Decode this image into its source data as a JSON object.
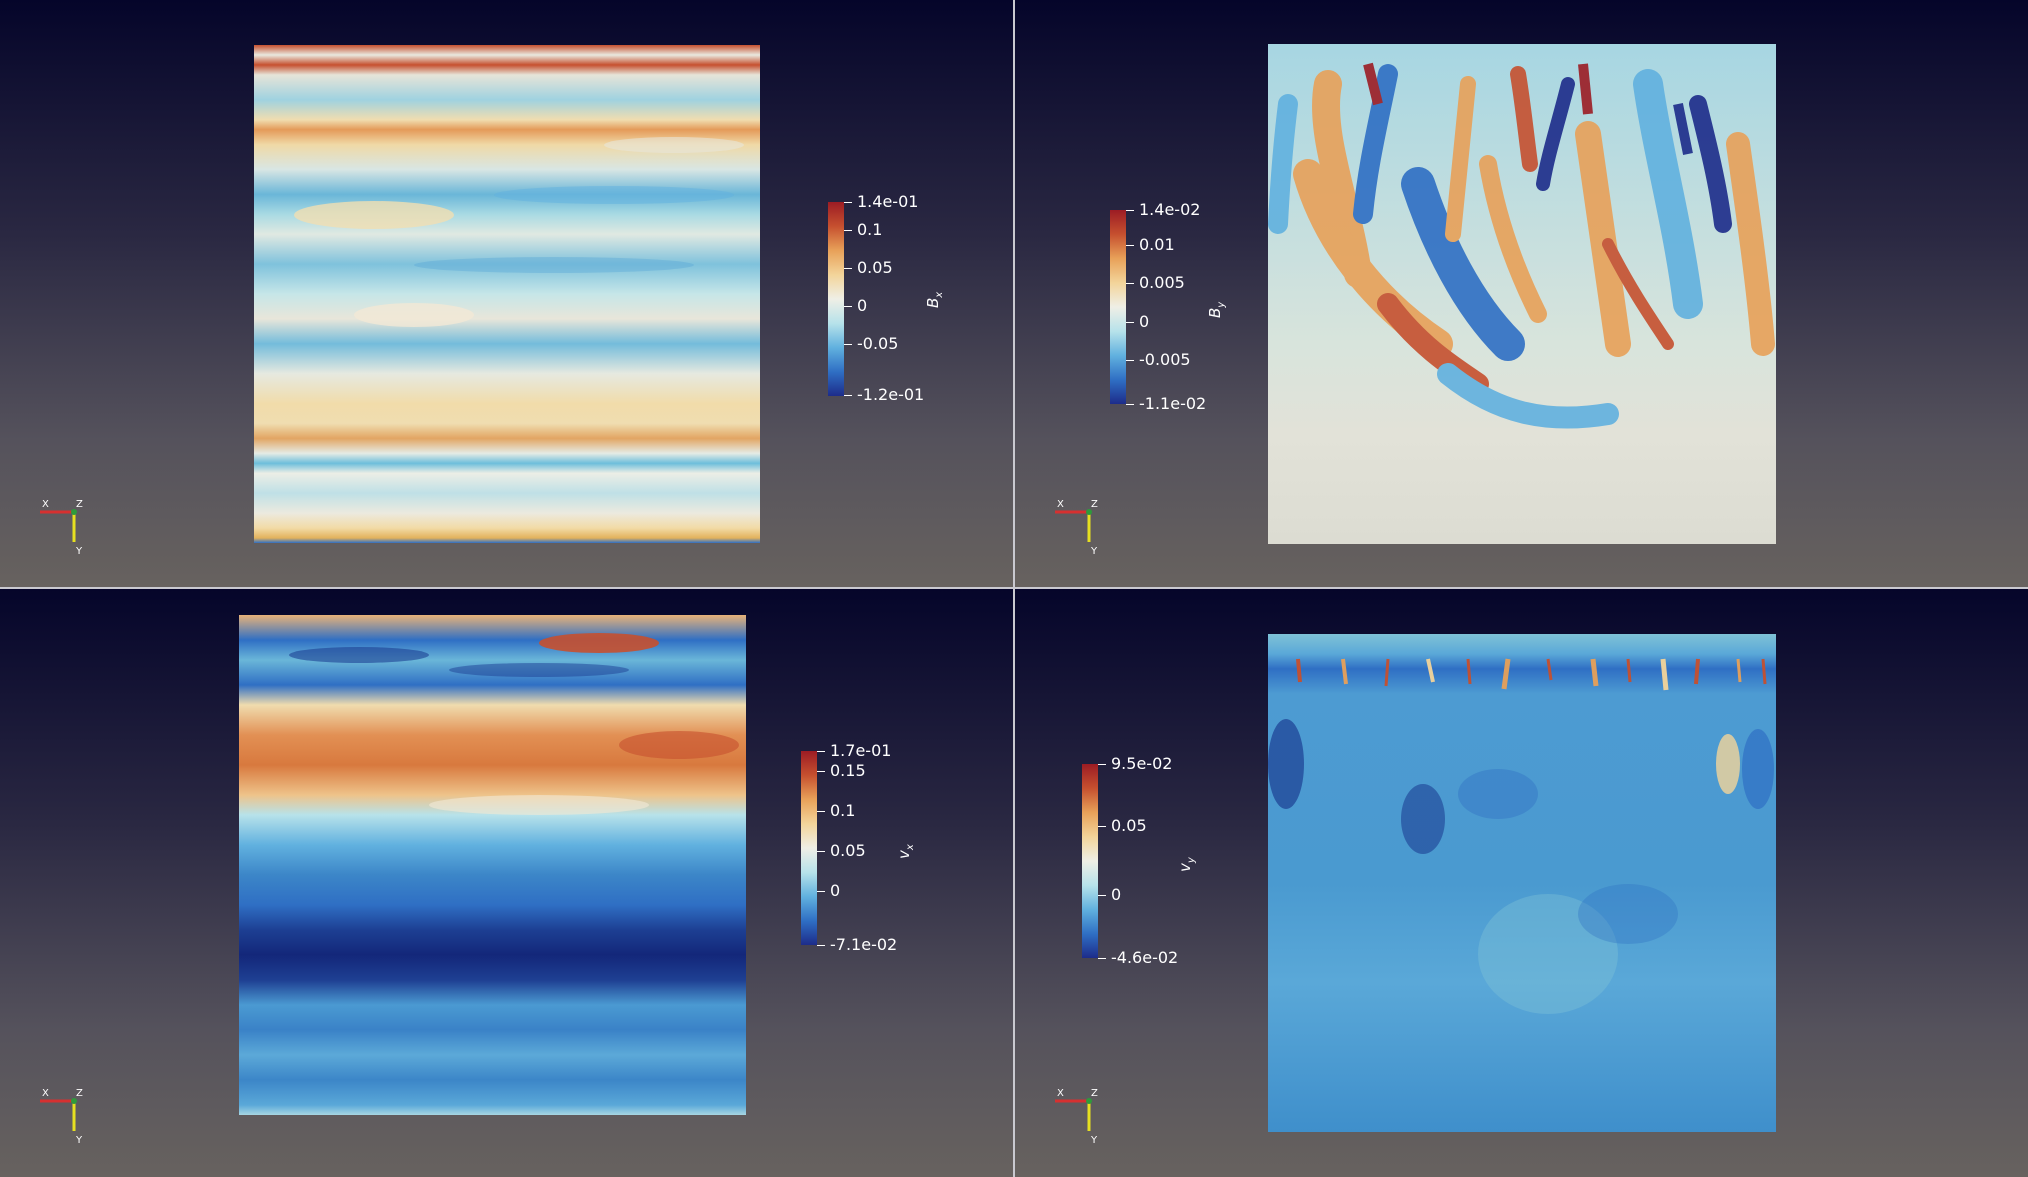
{
  "colors": {
    "divergent": [
      "#1d2c8a",
      "#2f6fc4",
      "#61b1df",
      "#b7e2ea",
      "#efefe6",
      "#f3d49a",
      "#e8a159",
      "#c6502f",
      "#9c1c24"
    ]
  },
  "panels": [
    {
      "id": "bx",
      "colorbar": {
        "title": "B",
        "title_sub": "x",
        "ticks": [
          "1.4e-01",
          "0.1",
          "0.05",
          "0",
          "-0.05",
          "-1.2e-01"
        ],
        "range": [
          -0.12,
          0.14
        ]
      }
    },
    {
      "id": "by",
      "colorbar": {
        "title": "B",
        "title_sub": "y",
        "ticks": [
          "1.4e-02",
          "0.01",
          "0.005",
          "0",
          "-0.005",
          "-1.1e-02"
        ],
        "range": [
          -0.011,
          0.014
        ]
      }
    },
    {
      "id": "vx",
      "colorbar": {
        "title": "v",
        "title_sub": "x",
        "ticks": [
          "1.7e-01",
          "0.15",
          "0.1",
          "0.05",
          "0",
          "-7.1e-02"
        ],
        "range": [
          -0.071,
          0.17
        ]
      }
    },
    {
      "id": "vy",
      "colorbar": {
        "title": "v",
        "title_sub": "y",
        "ticks": [
          "9.5e-02",
          "0.05",
          "0",
          "-4.6e-02"
        ],
        "range": [
          -0.046,
          0.095
        ]
      }
    }
  ],
  "axes_widget": {
    "x": "X",
    "z": "Z",
    "y": "Y"
  }
}
